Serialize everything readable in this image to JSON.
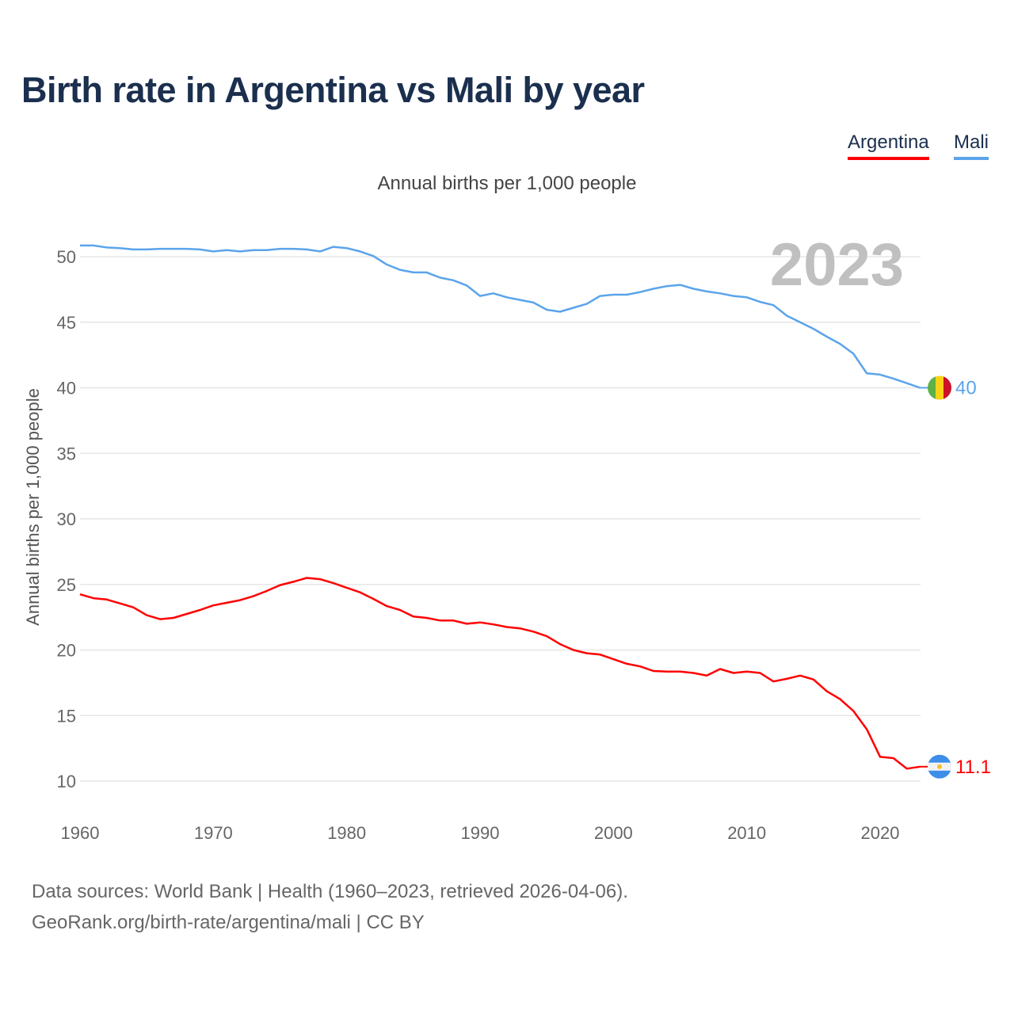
{
  "title": "Birth rate in Argentina vs Mali by year",
  "legend": [
    "Argentina",
    "Mali"
  ],
  "footer": {
    "line1": "Data sources: World Bank | Health (1960–2023, retrieved 2026-04-06).",
    "line2": "GeoRank.org/birth-rate/argentina/mali | CC BY"
  },
  "chart_data": {
    "type": "line",
    "title": "Birth rate in Argentina vs Mali by year",
    "subtitle": "Annual births per 1,000 people",
    "ylabel": "Annual births per 1,000 people",
    "xlabel": "",
    "year_watermark": "2023",
    "xlim": [
      1960,
      2023
    ],
    "ylim": [
      8,
      51.5
    ],
    "xticks": [
      1960,
      1970,
      1980,
      1990,
      2000,
      2010,
      2020
    ],
    "yticks": [
      10,
      15,
      20,
      25,
      30,
      35,
      40,
      45,
      50
    ],
    "grid": true,
    "legend_position": "top-right",
    "x_start": 1960,
    "series": [
      {
        "name": "Argentina",
        "color": "#ff0000",
        "end_label": "11.1",
        "flag": "argentina-flag",
        "values": [
          24.25,
          23.95,
          23.85,
          23.55,
          23.25,
          22.65,
          22.35,
          22.45,
          22.75,
          23.05,
          23.4,
          23.6,
          23.8,
          24.1,
          24.5,
          24.95,
          25.2,
          25.5,
          25.4,
          25.1,
          24.75,
          24.4,
          23.9,
          23.35,
          23.05,
          22.55,
          22.45,
          22.25,
          22.25,
          22.0,
          22.1,
          21.95,
          21.75,
          21.65,
          21.4,
          21.05,
          20.45,
          20.0,
          19.75,
          19.65,
          19.3,
          18.95,
          18.75,
          18.4,
          18.35,
          18.35,
          18.25,
          18.05,
          18.55,
          18.25,
          18.35,
          18.25,
          17.6,
          17.8,
          18.05,
          17.75,
          16.85,
          16.25,
          15.35,
          13.95,
          11.85,
          11.75,
          10.95,
          11.1
        ]
      },
      {
        "name": "Mali",
        "color": "#5ba4ea",
        "end_label": "40",
        "flag": "mali-flag",
        "values": [
          50.85,
          50.85,
          50.7,
          50.65,
          50.55,
          50.55,
          50.6,
          50.6,
          50.6,
          50.55,
          50.4,
          50.5,
          50.4,
          50.5,
          50.5,
          50.6,
          50.6,
          50.55,
          50.4,
          50.75,
          50.65,
          50.4,
          50.05,
          49.4,
          49.0,
          48.8,
          48.8,
          48.4,
          48.2,
          47.8,
          47.0,
          47.2,
          46.9,
          46.7,
          46.5,
          45.95,
          45.8,
          46.1,
          46.4,
          47.0,
          47.1,
          47.1,
          47.3,
          47.55,
          47.75,
          47.85,
          47.55,
          47.35,
          47.2,
          47.0,
          46.9,
          46.55,
          46.3,
          45.5,
          45.0,
          44.5,
          43.9,
          43.35,
          42.6,
          41.1,
          41.0,
          40.7,
          40.35,
          40.0
        ]
      }
    ]
  }
}
